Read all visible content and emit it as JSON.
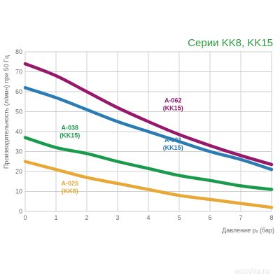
{
  "chart_data": {
    "type": "line",
    "title": "Серии KK8, KK15",
    "xlabel": "Давление pₓ (бар)",
    "ylabel": "Производительность (л/мин) при 50 Гц",
    "xlim": [
      0,
      8
    ],
    "ylim": [
      0,
      80
    ],
    "x_ticks": [
      "0",
      "1",
      "2",
      "3",
      "4",
      "5",
      "6",
      "7",
      "8"
    ],
    "y_ticks": [
      "0",
      "10",
      "20",
      "30",
      "40",
      "50",
      "60",
      "70",
      "80"
    ],
    "x": [
      0,
      1,
      2,
      3,
      4,
      5,
      6,
      7,
      8
    ],
    "grid": true,
    "series": [
      {
        "name": "A-062",
        "label_line2": "(KK15)",
        "color": "#96186a",
        "values": [
          74,
          68,
          60,
          52,
          45,
          38.5,
          33,
          28,
          23.5
        ]
      },
      {
        "name": "A-061",
        "label_line2": "(KK15)",
        "color": "#2c7cb4",
        "values": [
          62,
          57,
          51,
          45,
          40,
          35,
          30,
          26,
          21
        ]
      },
      {
        "name": "A-038",
        "label_line2": "(KK15)",
        "color": "#1a9a4c",
        "values": [
          37,
          32,
          29,
          25,
          21.5,
          18,
          15.5,
          12.8,
          11
        ]
      },
      {
        "name": "A-025",
        "label_line2": "(KK8)",
        "color": "#e8a838",
        "values": [
          25,
          21,
          17,
          14,
          11,
          8,
          6,
          4,
          2
        ]
      }
    ],
    "title_color": "#2d9a3e",
    "watermark": "ecoVita.ru"
  }
}
